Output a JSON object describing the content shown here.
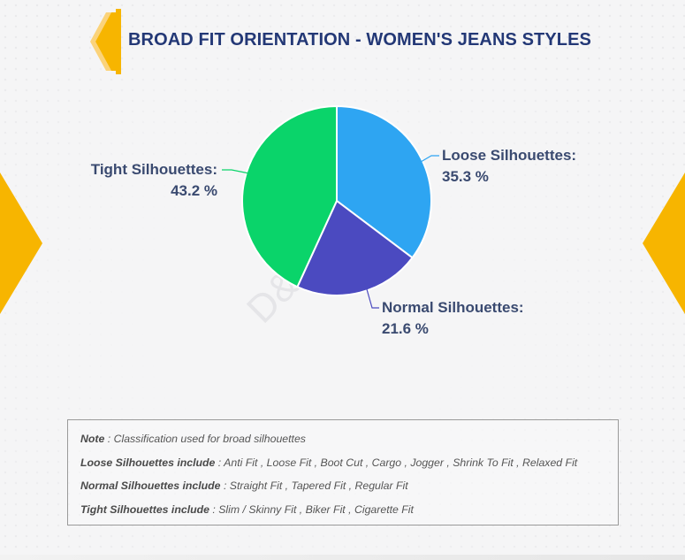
{
  "title": "BROAD FIT ORIENTATION - WOMEN'S JEANS STYLES",
  "watermark": "D&J Reports",
  "colors": {
    "title": "#233876",
    "accent": "#F7B500",
    "label": "#3A4A70"
  },
  "chart_data": {
    "type": "pie",
    "slices": [
      {
        "label": "Loose Silhouettes:",
        "value": 35.3,
        "value_text": "35.3 %",
        "color": "#2EA5F2"
      },
      {
        "label": "Normal Silhouettes:",
        "value": 21.6,
        "value_text": "21.6 %",
        "color": "#4B4AC0"
      },
      {
        "label": "Tight Silhouettes:",
        "value": 43.2,
        "value_text": "43.2 %",
        "color": "#0AD46A"
      }
    ]
  },
  "note": {
    "heading_label": "Note",
    "heading_text": " : Classification used for broad silhouettes",
    "lines": [
      {
        "label": "Loose Silhouettes include",
        "text": " : Anti Fit , Loose Fit , Boot Cut , Cargo , Jogger , Shrink To Fit , Relaxed Fit"
      },
      {
        "label": "Normal Silhouettes include",
        "text": " : Straight Fit , Tapered Fit , Regular Fit"
      },
      {
        "label": "Tight Silhouettes include",
        "text": " : Slim / Skinny Fit , Biker Fit , Cigarette Fit"
      }
    ]
  }
}
